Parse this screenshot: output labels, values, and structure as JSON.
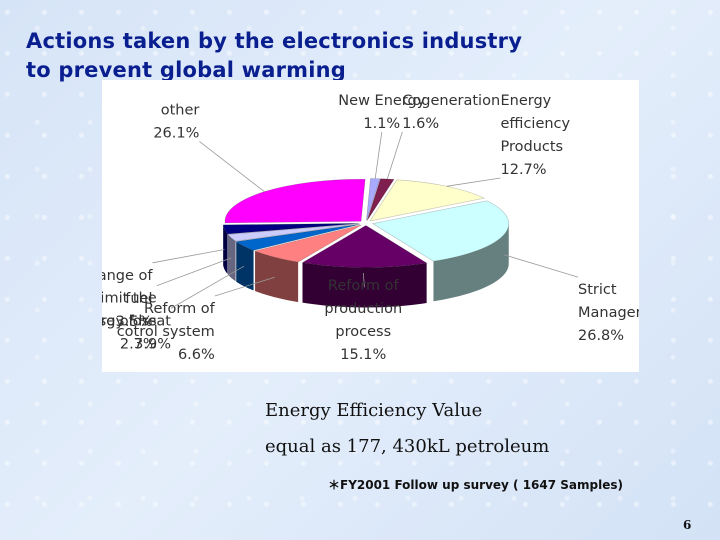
{
  "slide": {
    "title_line1": "Actions taken by the electronics industry",
    "title_line2": "to prevent global warming",
    "note_line1": "Energy Efficiency Value",
    "note_line2": "equal as 177, 430kL petroleum",
    "survey_note": "＊FY2001 Follow up survey ( 1647 Samples)",
    "page_number": "6"
  },
  "chart_data": {
    "type": "pie",
    "style": "3d-exploded",
    "title": "",
    "slices": [
      {
        "label": [
          "New Energy"
        ],
        "value": 1.1,
        "value_label": "1.1%",
        "color": "#a9a9ff"
      },
      {
        "label": [
          "Cogeneration"
        ],
        "value": 1.6,
        "value_label": "1.6%",
        "color": "#7f1f4f"
      },
      {
        "label": [
          "Energy",
          "efficiency",
          "Products"
        ],
        "value": 12.7,
        "value_label": "12.7%",
        "color": "#ffffcc"
      },
      {
        "label": [
          "Strict",
          "Management"
        ],
        "value": 26.8,
        "value_label": "26.8%",
        "color": "#ccffff"
      },
      {
        "label": [
          "Reform of",
          "production",
          "process"
        ],
        "value": 15.1,
        "value_label": "15.1%",
        "color": "#660066"
      },
      {
        "label": [
          "Reform of",
          "cotrol system"
        ],
        "value": 6.6,
        "value_label": "6.6%",
        "color": "#ff8080"
      },
      {
        "label": [
          "reuse of heat"
        ],
        "value": 3.9,
        "value_label": "3.9%",
        "color": "#0066cc"
      },
      {
        "label": [
          "limit the",
          "energy loss"
        ],
        "value": 2.7,
        "value_label": "2.7%",
        "color": "#ccccff"
      },
      {
        "label": [
          "change of",
          "fuel"
        ],
        "value": 3.5,
        "value_label": "3.5%",
        "color": "#000080"
      },
      {
        "label": [
          "other"
        ],
        "value": 26.1,
        "value_label": "26.1%",
        "color": "#ff00ff"
      }
    ]
  }
}
